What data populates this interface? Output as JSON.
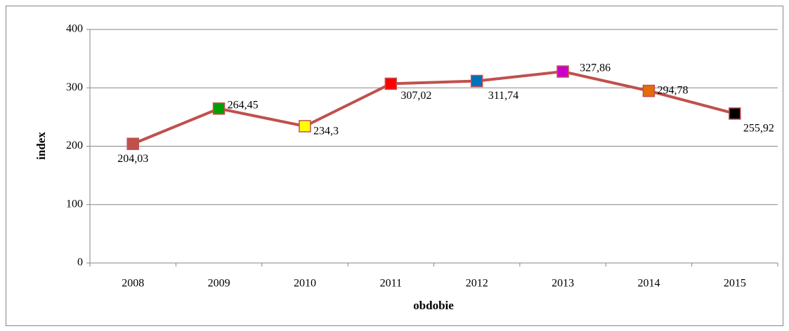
{
  "chart_data": {
    "type": "line",
    "x_label": "obdobie",
    "y_label": "index",
    "categories": [
      "2008",
      "2009",
      "2010",
      "2011",
      "2012",
      "2013",
      "2014",
      "2015"
    ],
    "values": [
      204.03,
      264.45,
      234.3,
      307.02,
      311.74,
      327.86,
      294.78,
      255.92
    ],
    "value_labels": [
      "204,03",
      "264,45",
      "234,3",
      "307,02",
      "311,74",
      "327,86",
      "294,78",
      "255,92"
    ],
    "color": "#c0504d",
    "marker_colors": [
      "#c0504d",
      "#00a000",
      "#ffff00",
      "#ff0000",
      "#0070c0",
      "#cc00cc",
      "#e46c0a",
      "#000000"
    ],
    "ylim": [
      0,
      400
    ],
    "yticks": [
      0,
      100,
      200,
      300,
      400
    ],
    "grid": true
  }
}
